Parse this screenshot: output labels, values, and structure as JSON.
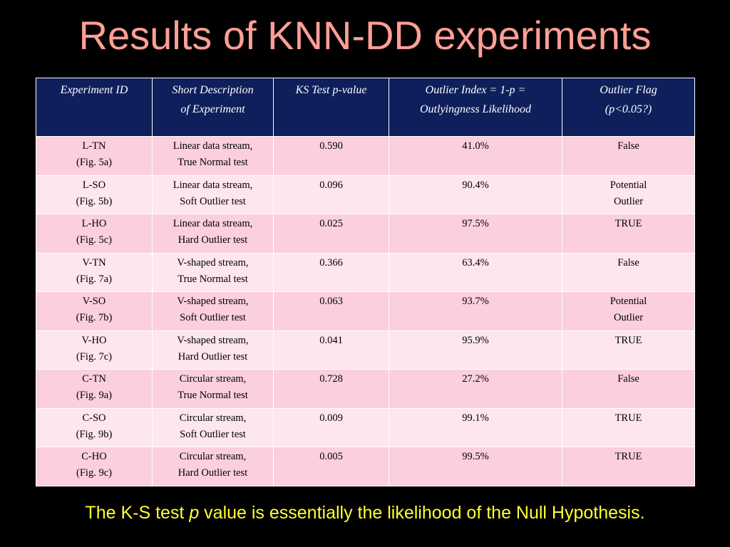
{
  "title": "Results of KNN-DD experiments",
  "table": {
    "headers": [
      [
        "Experiment ID"
      ],
      [
        "Short Description",
        "of Experiment"
      ],
      [
        "KS Test p-value"
      ],
      [
        "Outlier Index = 1-p =",
        "Outlyingness Likelihood"
      ],
      [
        "Outlier Flag",
        "(p<0.05?)"
      ]
    ],
    "rows": [
      {
        "id": [
          "L-TN",
          "(Fig. 5a)"
        ],
        "desc": [
          "Linear data stream,",
          "True Normal test"
        ],
        "p": "0.590",
        "index": "41.0%",
        "flag": [
          "False"
        ]
      },
      {
        "id": [
          "L-SO",
          "(Fig. 5b)"
        ],
        "desc": [
          "Linear data stream,",
          "Soft Outlier test"
        ],
        "p": "0.096",
        "index": "90.4%",
        "flag": [
          "Potential",
          "Outlier"
        ]
      },
      {
        "id": [
          "L-HO",
          "(Fig. 5c)"
        ],
        "desc": [
          "Linear data stream,",
          "Hard Outlier test"
        ],
        "p": "0.025",
        "index": "97.5%",
        "flag": [
          "TRUE"
        ]
      },
      {
        "id": [
          "V-TN",
          "(Fig. 7a)"
        ],
        "desc": [
          "V-shaped stream,",
          "True Normal test"
        ],
        "p": "0.366",
        "index": "63.4%",
        "flag": [
          "False"
        ]
      },
      {
        "id": [
          "V-SO",
          "(Fig. 7b)"
        ],
        "desc": [
          "V-shaped stream,",
          "Soft Outlier test"
        ],
        "p": "0.063",
        "index": "93.7%",
        "flag": [
          "Potential",
          "Outlier"
        ]
      },
      {
        "id": [
          "V-HO",
          "(Fig. 7c)"
        ],
        "desc": [
          "V-shaped stream,",
          "Hard Outlier test"
        ],
        "p": "0.041",
        "index": "95.9%",
        "flag": [
          "TRUE"
        ]
      },
      {
        "id": [
          "C-TN",
          "(Fig. 9a)"
        ],
        "desc": [
          "Circular stream,",
          "True Normal test"
        ],
        "p": "0.728",
        "index": "27.2%",
        "flag": [
          "False"
        ]
      },
      {
        "id": [
          "C-SO",
          "(Fig. 9b)"
        ],
        "desc": [
          "Circular stream,",
          "Soft Outlier test"
        ],
        "p": "0.009",
        "index": "99.1%",
        "flag": [
          "TRUE"
        ]
      },
      {
        "id": [
          "C-HO",
          "(Fig. 9c)"
        ],
        "desc": [
          "Circular stream,",
          "Hard Outlier test"
        ],
        "p": "0.005",
        "index": "99.5%",
        "flag": [
          "TRUE"
        ]
      }
    ]
  },
  "footer": {
    "before": "The K-S test ",
    "italic": "p",
    "after": " value is essentially the likelihood of the Null Hypothesis."
  },
  "colors": {
    "background": "#000000",
    "title": "#FF9F96",
    "header_bg": "#0E1F5B",
    "row_odd": "#FBCFDC",
    "row_even": "#FDE6EC",
    "footer": "#FFFF33"
  }
}
